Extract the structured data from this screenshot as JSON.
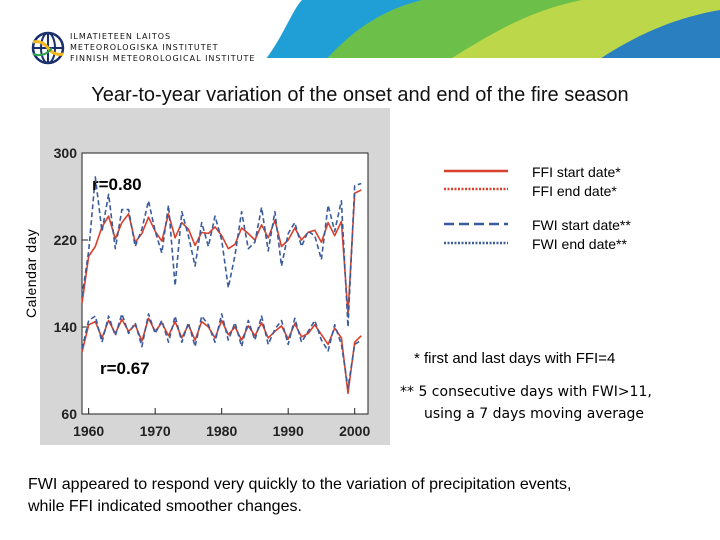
{
  "logo": {
    "line1": "ILMATIETEEN LAITOS",
    "line2": "METEOROLOGISKA INSTITUTET",
    "line3": "FINNISH METEOROLOGICAL INSTITUTE"
  },
  "banner": {
    "colors": [
      "#1f9fd6",
      "#6cc04a",
      "#bcd84a",
      "#2a7fc0"
    ]
  },
  "title": "Year-to-year variation of the onset and end of the fire season",
  "colors": {
    "ffi": "#d9402b",
    "fwi": "#3a5b9c"
  },
  "legend": {
    "ffi_start": "FFI start date*",
    "ffi_end": "FFI end date*",
    "fwi_start": "FWI start date**",
    "fwi_end": "FWI end date**"
  },
  "notes": {
    "ffi_def": "* first and last days with FFI=4",
    "fwi_def_1": "** 5 consecutive days with FWI>11,",
    "fwi_def_2": "using a 7 days moving average"
  },
  "summary": {
    "line1": "FWI appeared to respond very quickly to the variation of precipitation events,",
    "line2": "while FFI indicated smoother changes."
  },
  "chart_data": {
    "type": "line",
    "ylabel": "Calendar day",
    "xlabel": "",
    "x_ticks": [
      "1960",
      "1970",
      "1980",
      "1990",
      "2000"
    ],
    "y_ticks": [
      "300",
      "220",
      "140",
      "60"
    ],
    "xlim": [
      1959,
      2002
    ],
    "ylim": [
      60,
      300
    ],
    "annotations": {
      "end_r": "r=0.80",
      "start_r": "r=0.67"
    },
    "x": [
      1959,
      1960,
      1961,
      1962,
      1963,
      1964,
      1965,
      1966,
      1967,
      1968,
      1969,
      1970,
      1971,
      1972,
      1973,
      1974,
      1975,
      1976,
      1977,
      1978,
      1979,
      1980,
      1981,
      1982,
      1983,
      1984,
      1985,
      1986,
      1987,
      1988,
      1989,
      1990,
      1991,
      1992,
      1993,
      1994,
      1995,
      1996,
      1997,
      1998,
      1999,
      2000,
      2001
    ],
    "series": [
      {
        "name": "FFI end date",
        "color": "#d9402b",
        "style": "solid",
        "values": [
          162,
          205,
          214,
          232,
          242,
          221,
          236,
          244,
          218,
          226,
          241,
          228,
          219,
          244,
          222,
          236,
          230,
          215,
          227,
          226,
          232,
          224,
          212,
          216,
          231,
          226,
          220,
          234,
          222,
          238,
          214,
          220,
          231,
          220,
          227,
          229,
          218,
          236,
          224,
          237,
          152,
          263,
          266
        ]
      },
      {
        "name": "FWI end date",
        "color": "#3a5b9c",
        "style": "dashed",
        "values": [
          168,
          210,
          278,
          228,
          262,
          212,
          248,
          248,
          214,
          230,
          256,
          228,
          208,
          252,
          178,
          246,
          224,
          196,
          236,
          214,
          242,
          220,
          176,
          206,
          246,
          212,
          218,
          250,
          210,
          246,
          196,
          226,
          236,
          214,
          228,
          224,
          202,
          252,
          228,
          256,
          140,
          270,
          272
        ]
      },
      {
        "name": "FFI start date",
        "color": "#d9402b",
        "style": "solid",
        "values": [
          117,
          142,
          145,
          130,
          146,
          134,
          147,
          136,
          142,
          127,
          148,
          136,
          144,
          132,
          145,
          130,
          142,
          128,
          145,
          140,
          130,
          146,
          133,
          140,
          128,
          141,
          132,
          144,
          130,
          136,
          141,
          129,
          143,
          131,
          134,
          142,
          133,
          124,
          139,
          130,
          79,
          126,
          132
        ]
      },
      {
        "name": "FWI start date",
        "color": "#3a5b9c",
        "style": "dashed",
        "values": [
          120,
          146,
          150,
          126,
          150,
          132,
          152,
          134,
          144,
          122,
          152,
          134,
          146,
          126,
          150,
          126,
          144,
          122,
          150,
          142,
          126,
          152,
          128,
          144,
          122,
          146,
          128,
          150,
          124,
          138,
          146,
          124,
          148,
          126,
          136,
          146,
          128,
          118,
          142,
          124,
          84,
          124,
          128
        ]
      }
    ]
  }
}
